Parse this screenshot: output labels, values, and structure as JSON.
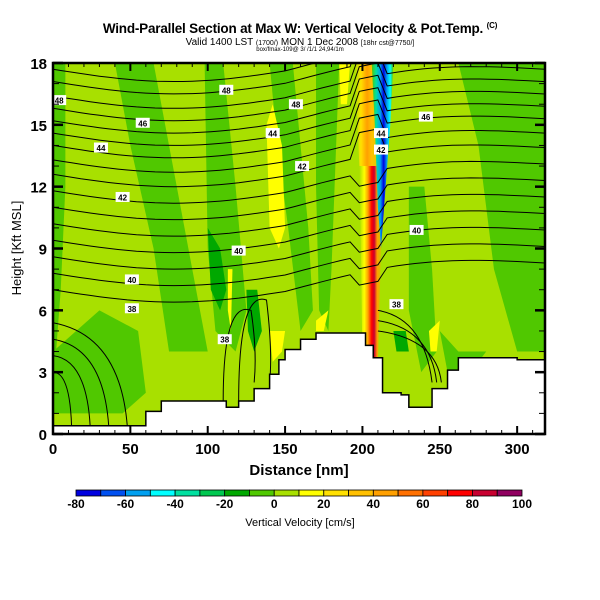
{
  "header": {
    "title": "Wind-Parallel Section at Max W: Vertical Velocity & Pot.Temp.",
    "title_tag": "(C)",
    "subtitle_main": "Valid 1400 LST",
    "subtitle_utc": "(1700/)",
    "subtitle_date": "MON 1 Dec 2008",
    "subtitle_run": "[18hr cst@7750/]",
    "info_line": "box/fmax-109@ 3/ /1/1 24,94/1m"
  },
  "chart_data": {
    "type": "heatmap",
    "title": "Wind-Parallel Section at Max W: Vertical Velocity & Pot.Temp.",
    "xlabel": "Distance [nm]",
    "ylabel": "Height [Kft MSL]",
    "xlim": [
      0,
      318
    ],
    "ylim": [
      0,
      18
    ],
    "xticks": [
      0,
      50,
      100,
      150,
      200,
      250,
      300
    ],
    "yticks": [
      0,
      3,
      6,
      9,
      12,
      15,
      18
    ],
    "colorbar": {
      "label": "Vertical Velocity [cm/s]",
      "placement": "bottom",
      "bounds": [
        -80,
        -70,
        -60,
        -50,
        -40,
        -30,
        -20,
        -10,
        0,
        10,
        20,
        30,
        40,
        50,
        60,
        70,
        80,
        90,
        100
      ],
      "tick_labels": [
        "-80",
        "-60",
        "-40",
        "-20",
        "0",
        "20",
        "40",
        "60",
        "80",
        "100"
      ],
      "colors": [
        "#0000e0",
        "#0050f0",
        "#00a0f0",
        "#00ffff",
        "#00e0a0",
        "#00c850",
        "#00a800",
        "#50c800",
        "#a8e000",
        "#ffff00",
        "#ffe000",
        "#ffc000",
        "#ffa000",
        "#ff7000",
        "#ff4000",
        "#ff0000",
        "#c80030",
        "#900060"
      ]
    },
    "contour_field": "Potential Temperature",
    "contour_labels": [
      {
        "value": "48",
        "x": 4,
        "y": 16.2
      },
      {
        "value": "48",
        "x": 112,
        "y": 16.7
      },
      {
        "value": "48",
        "x": 157,
        "y": 16.0
      },
      {
        "value": "46",
        "x": 58,
        "y": 15.1
      },
      {
        "value": "44",
        "x": 142,
        "y": 14.6
      },
      {
        "value": "44",
        "x": 212,
        "y": 14.6
      },
      {
        "value": "46",
        "x": 241,
        "y": 15.4
      },
      {
        "value": "44",
        "x": 31,
        "y": 13.9
      },
      {
        "value": "42",
        "x": 161,
        "y": 13.0
      },
      {
        "value": "42",
        "x": 212,
        "y": 13.8
      },
      {
        "value": "42",
        "x": 45,
        "y": 11.5
      },
      {
        "value": "40",
        "x": 235,
        "y": 9.9
      },
      {
        "value": "40",
        "x": 120,
        "y": 8.9
      },
      {
        "value": "40",
        "x": 51,
        "y": 7.5
      },
      {
        "value": "38",
        "x": 51,
        "y": 6.1
      },
      {
        "value": "38",
        "x": 222,
        "y": 6.3
      },
      {
        "value": "38",
        "x": 111,
        "y": 4.6
      }
    ],
    "terrain_kft": [
      [
        0,
        0.4
      ],
      [
        50,
        0.4
      ],
      [
        60,
        1.1
      ],
      [
        70,
        1.6
      ],
      [
        100,
        1.6
      ],
      [
        112,
        1.3
      ],
      [
        118,
        1.3
      ],
      [
        120,
        1.6
      ],
      [
        130,
        2.2
      ],
      [
        140,
        2.9
      ],
      [
        146,
        3.6
      ],
      [
        150,
        4.1
      ],
      [
        160,
        4.6
      ],
      [
        170,
        4.9
      ],
      [
        197,
        4.9
      ],
      [
        202,
        4.3
      ],
      [
        207,
        3.7
      ],
      [
        212,
        3.7
      ],
      [
        213,
        2.0
      ],
      [
        225,
        1.9
      ],
      [
        230,
        1.3
      ],
      [
        240,
        1.3
      ],
      [
        245,
        2.2
      ],
      [
        255,
        3.1
      ],
      [
        262,
        3.7
      ],
      [
        280,
        3.7
      ],
      [
        300,
        3.6
      ],
      [
        318,
        3.5
      ]
    ],
    "features": [
      {
        "name": "updraft-core",
        "x": 207,
        "y_range": [
          3.5,
          12
        ],
        "max_value": 90
      },
      {
        "name": "downdraft-core",
        "x": 213,
        "y_range": [
          12,
          18
        ],
        "min_value": -80
      }
    ]
  }
}
